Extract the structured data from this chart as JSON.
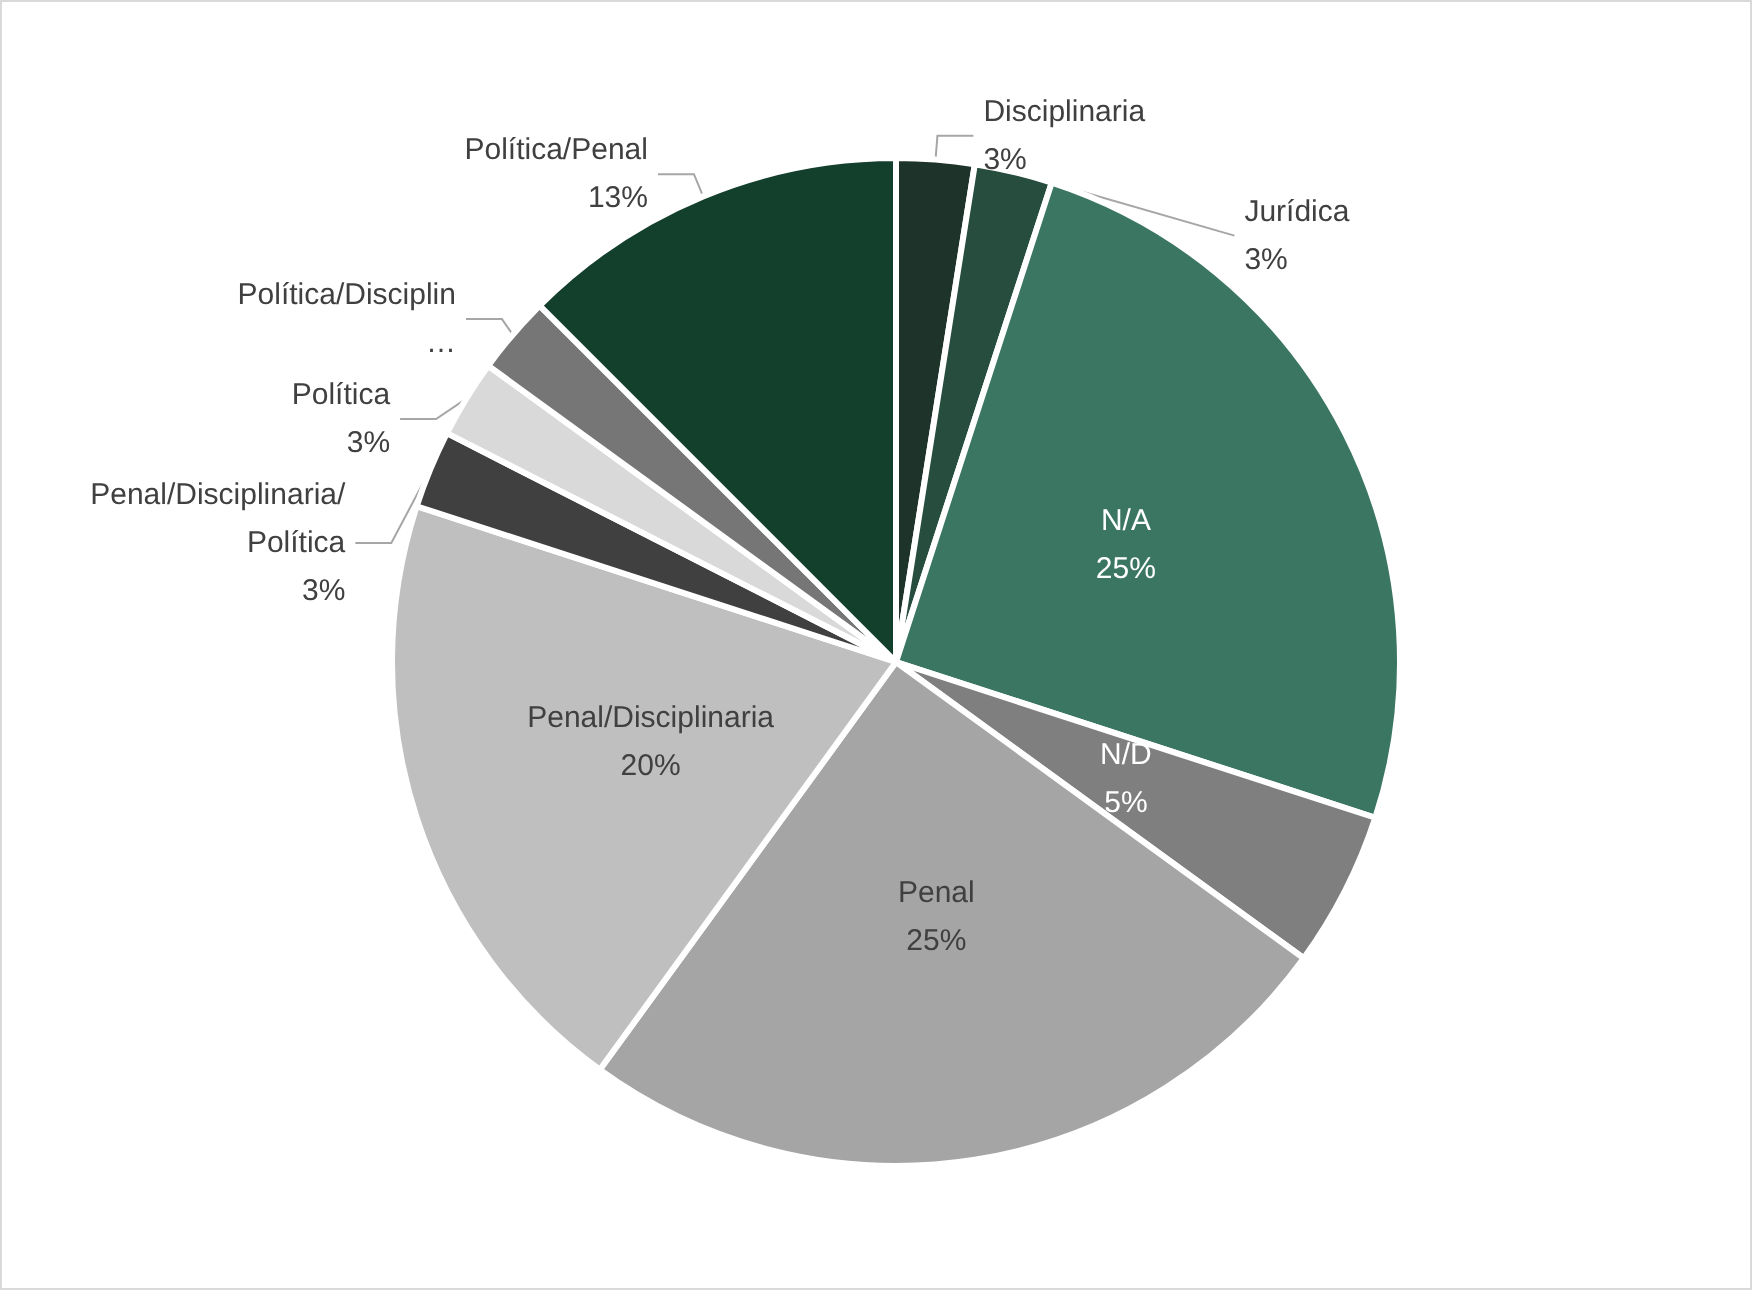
{
  "chart_data": {
    "type": "pie",
    "categories": [
      "Disciplinaria",
      "Jurídica",
      "N/A",
      "N/D",
      "Penal",
      "Penal/Disciplinaria",
      "Penal/Disciplinaria/Política",
      "Política",
      "Política/Disciplin…",
      "Política/Penal"
    ],
    "values": [
      2.5,
      2.5,
      25,
      5,
      25,
      20,
      2.5,
      2.5,
      2.5,
      12.5
    ],
    "value_labels": [
      "3%",
      "3%",
      "25%",
      "5%",
      "25%",
      "20%",
      "3%",
      "3%",
      null,
      "13%"
    ],
    "colors": [
      "#1e3329",
      "#264d3e",
      "#3b7662",
      "#7f7f7f",
      "#a5a5a5",
      "#bfbfbf",
      "#404040",
      "#d9d9d9",
      "#767676",
      "#133f2d"
    ],
    "legend": false
  }
}
